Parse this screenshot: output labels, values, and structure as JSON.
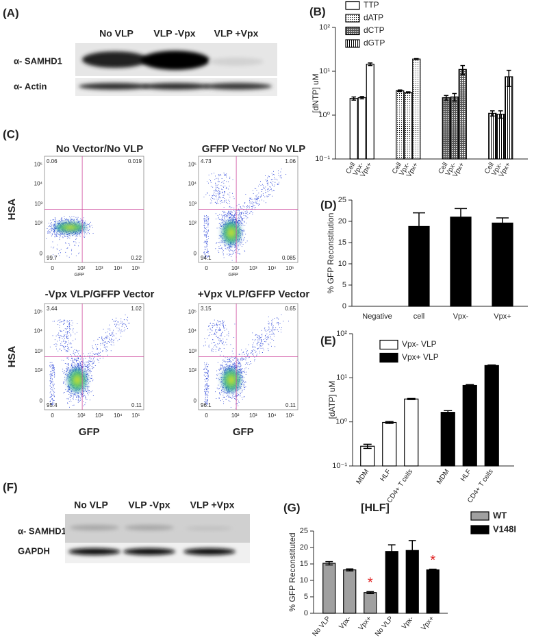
{
  "blot_a": {
    "panel": "(A)",
    "lanes": [
      "No VLP",
      "VLP -Vpx",
      "VLP +Vpx"
    ],
    "rows": [
      "α- SAMHD1",
      "α- Actin"
    ]
  },
  "flow_c": {
    "panel": "(C)",
    "xlabel": "GFP",
    "ylabel": "HSA",
    "tick_labels": [
      "0",
      "10²",
      "10³",
      "10⁴",
      "10⁵"
    ],
    "plots": [
      {
        "title": "No Vector/No VLP",
        "quadrants": [
          "0.06",
          "0.019",
          "99.7",
          "0.22"
        ]
      },
      {
        "title": "GFFP Vector/ No VLP",
        "quadrants": [
          "4.73",
          "1.06",
          "94.1",
          "0.085"
        ]
      },
      {
        "title": "-Vpx VLP/GFFP Vector",
        "quadrants": [
          "3.44",
          "1.02",
          "95.4",
          "0.11"
        ]
      },
      {
        "title": "+Vpx VLP/GFFP Vector",
        "quadrants": [
          "3.15",
          "0.65",
          "96.1",
          "0.11"
        ]
      }
    ]
  },
  "blot_f": {
    "panel": "(F)",
    "lanes": [
      "No VLP",
      "VLP -Vpx",
      "VLP +Vpx"
    ],
    "rows": [
      "α- SAMHD1",
      "GAPDH"
    ]
  },
  "chart_data": [
    {
      "type": "bar",
      "panel": "(B)",
      "ylabel": "[dNTP] uM",
      "log_scale": true,
      "ylim": [
        0.1,
        100
      ],
      "yticks": [
        {
          "value": 0.1,
          "label": "10⁻¹"
        },
        {
          "value": 1,
          "label": "10⁰"
        },
        {
          "value": 10,
          "label": "10¹"
        },
        {
          "value": 100,
          "label": "10²"
        }
      ],
      "categories": [
        "Cell",
        "Vpx-",
        "Vpx+"
      ],
      "series": [
        {
          "name": "TTP",
          "color": "#ffffff",
          "values": [
            2.4,
            2.5,
            14.5
          ],
          "errors": [
            0.2,
            0.15,
            1
          ]
        },
        {
          "name": "dATP",
          "color": "#ffffff",
          "pattern": "dots",
          "values": [
            3.6,
            3.3,
            19
          ],
          "errors": [
            0.15,
            0.1,
            0.5
          ]
        },
        {
          "name": "dCTP",
          "color": "#ffffff",
          "pattern": "crosshatch",
          "values": [
            2.5,
            2.6,
            11
          ],
          "errors": [
            0.3,
            0.5,
            2.5
          ]
        },
        {
          "name": "dGTP",
          "color": "#ffffff",
          "pattern": "vlines",
          "values": [
            1.1,
            1.05,
            7.5
          ],
          "errors": [
            0.15,
            0.2,
            3
          ]
        }
      ]
    },
    {
      "type": "bar",
      "panel": "(D)",
      "ylabel": "% GFP Reconstitution",
      "ylim": [
        0,
        25
      ],
      "yticks": [
        0,
        5,
        10,
        15,
        20,
        25
      ],
      "categories": [
        "Negative",
        "cell",
        "Vpx-",
        "Vpx+"
      ],
      "color": "#000000",
      "values": [
        0,
        18.8,
        21,
        19.6
      ],
      "errors": [
        0,
        3.2,
        2,
        1.2
      ]
    },
    {
      "type": "bar",
      "panel": "(E)",
      "ylabel": "[dATP]  uM",
      "log_scale": true,
      "ylim": [
        0.1,
        100
      ],
      "yticks": [
        {
          "value": 0.1,
          "label": "10⁻¹"
        },
        {
          "value": 1,
          "label": "10⁰"
        },
        {
          "value": 10,
          "label": "10¹"
        },
        {
          "value": 100,
          "label": "10²"
        }
      ],
      "categories": [
        "MDM",
        "HLF",
        "CD4+ T cells"
      ],
      "series": [
        {
          "name": "Vpx- VLP",
          "color": "#ffffff",
          "values": [
            0.28,
            0.97,
            3.3
          ],
          "errors": [
            0.03,
            0.05,
            0.1
          ]
        },
        {
          "name": "Vpx+ VLP",
          "color": "#000000",
          "values": [
            1.65,
            6.7,
            19
          ],
          "errors": [
            0.15,
            0.3,
            0.5
          ]
        }
      ]
    },
    {
      "type": "bar",
      "panel": "(G)",
      "title": "[HLF]",
      "ylabel": "% GFP  Reconstituted",
      "ylim": [
        0,
        25
      ],
      "yticks": [
        0,
        5,
        10,
        15,
        20,
        25
      ],
      "categories": [
        "No VLP",
        "Vpx-",
        "Vpx+"
      ],
      "series": [
        {
          "name": "WT",
          "color": "#a0a0a0",
          "values": [
            15.2,
            13.2,
            6.3
          ],
          "errors": [
            0.5,
            0.3,
            0.3
          ]
        },
        {
          "name": "V148I",
          "color": "#000000",
          "values": [
            18.8,
            19.1,
            13.2
          ],
          "errors": [
            2,
            3,
            0.2
          ]
        }
      ],
      "annotations": [
        {
          "text": "*",
          "series": "WT",
          "category": "Vpx+",
          "color": "#e02020"
        },
        {
          "text": "*",
          "series": "V148I",
          "category": "Vpx+",
          "color": "#e02020"
        }
      ]
    }
  ]
}
